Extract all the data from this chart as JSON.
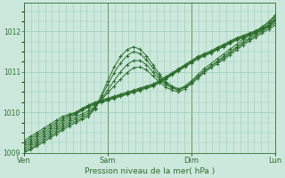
{
  "xlabel": "Pression niveau de la mer( hPa )",
  "background_color": "#cce8dc",
  "plot_bg_color": "#cce8dc",
  "grid_color": "#99ccb8",
  "line_color": "#2d6e2d",
  "marker": "+",
  "markersize": 3,
  "linewidth": 0.7,
  "ylim": [
    1009.0,
    1012.7
  ],
  "yticks": [
    1009,
    1010,
    1011,
    1012
  ],
  "xtick_labels": [
    "Ven",
    "Sam",
    "Dim",
    "Lun"
  ],
  "xtick_positions": [
    0.0,
    0.333,
    0.667,
    1.0
  ],
  "n_points": 40,
  "series": [
    [
      1009.3,
      1009.4,
      1009.5,
      1009.6,
      1009.7,
      1009.8,
      1009.9,
      1009.95,
      1010.0,
      1010.1,
      1010.18,
      1010.25,
      1010.3,
      1010.35,
      1010.4,
      1010.45,
      1010.5,
      1010.55,
      1010.6,
      1010.65,
      1010.7,
      1010.78,
      1010.88,
      1010.98,
      1011.08,
      1011.18,
      1011.28,
      1011.38,
      1011.45,
      1011.52,
      1011.6,
      1011.68,
      1011.76,
      1011.84,
      1011.9,
      1011.96,
      1012.02,
      1012.1,
      1012.2,
      1012.4
    ],
    [
      1009.25,
      1009.35,
      1009.45,
      1009.55,
      1009.65,
      1009.75,
      1009.85,
      1009.93,
      1009.98,
      1010.08,
      1010.16,
      1010.23,
      1010.28,
      1010.33,
      1010.38,
      1010.43,
      1010.48,
      1010.53,
      1010.58,
      1010.63,
      1010.68,
      1010.76,
      1010.86,
      1010.96,
      1011.06,
      1011.16,
      1011.26,
      1011.36,
      1011.43,
      1011.5,
      1011.58,
      1011.66,
      1011.74,
      1011.82,
      1011.88,
      1011.94,
      1012.0,
      1012.08,
      1012.16,
      1012.35
    ],
    [
      1009.2,
      1009.3,
      1009.4,
      1009.5,
      1009.6,
      1009.7,
      1009.8,
      1009.9,
      1009.96,
      1010.06,
      1010.14,
      1010.21,
      1010.26,
      1010.31,
      1010.36,
      1010.41,
      1010.46,
      1010.51,
      1010.56,
      1010.61,
      1010.66,
      1010.74,
      1010.84,
      1010.94,
      1011.04,
      1011.14,
      1011.24,
      1011.34,
      1011.41,
      1011.48,
      1011.56,
      1011.64,
      1011.72,
      1011.8,
      1011.86,
      1011.92,
      1011.98,
      1012.06,
      1012.14,
      1012.3
    ],
    [
      1009.15,
      1009.25,
      1009.35,
      1009.45,
      1009.55,
      1009.65,
      1009.75,
      1009.85,
      1009.94,
      1010.04,
      1010.12,
      1010.19,
      1010.24,
      1010.29,
      1010.34,
      1010.39,
      1010.44,
      1010.49,
      1010.54,
      1010.59,
      1010.64,
      1010.72,
      1010.82,
      1010.92,
      1011.02,
      1011.12,
      1011.22,
      1011.32,
      1011.39,
      1011.46,
      1011.54,
      1011.62,
      1011.7,
      1011.78,
      1011.84,
      1011.9,
      1011.96,
      1012.04,
      1012.12,
      1012.25
    ],
    [
      1009.1,
      1009.2,
      1009.3,
      1009.4,
      1009.5,
      1009.6,
      1009.7,
      1009.8,
      1009.88,
      1009.96,
      1010.04,
      1010.15,
      1010.3,
      1010.48,
      1010.65,
      1010.82,
      1010.98,
      1011.1,
      1011.12,
      1011.05,
      1010.9,
      1010.75,
      1010.62,
      1010.55,
      1010.5,
      1010.58,
      1010.7,
      1010.84,
      1010.98,
      1011.1,
      1011.2,
      1011.3,
      1011.42,
      1011.54,
      1011.66,
      1011.76,
      1011.86,
      1011.96,
      1012.05,
      1012.15
    ],
    [
      1009.05,
      1009.15,
      1009.25,
      1009.35,
      1009.45,
      1009.55,
      1009.65,
      1009.75,
      1009.83,
      1009.91,
      1009.99,
      1010.12,
      1010.32,
      1010.55,
      1010.78,
      1011.0,
      1011.18,
      1011.28,
      1011.28,
      1011.18,
      1011.0,
      1010.82,
      1010.68,
      1010.6,
      1010.55,
      1010.62,
      1010.74,
      1010.88,
      1011.02,
      1011.14,
      1011.24,
      1011.34,
      1011.46,
      1011.58,
      1011.7,
      1011.8,
      1011.9,
      1012.0,
      1012.1,
      1012.2
    ],
    [
      1009.0,
      1009.1,
      1009.2,
      1009.3,
      1009.4,
      1009.5,
      1009.6,
      1009.7,
      1009.78,
      1009.86,
      1009.94,
      1010.1,
      1010.38,
      1010.68,
      1010.98,
      1011.22,
      1011.4,
      1011.5,
      1011.45,
      1011.3,
      1011.1,
      1010.88,
      1010.72,
      1010.62,
      1010.55,
      1010.62,
      1010.74,
      1010.88,
      1011.02,
      1011.14,
      1011.26,
      1011.38,
      1011.5,
      1011.62,
      1011.74,
      1011.84,
      1011.94,
      1012.04,
      1012.14,
      1012.28
    ],
    [
      1009.0,
      1009.08,
      1009.16,
      1009.26,
      1009.36,
      1009.46,
      1009.56,
      1009.66,
      1009.74,
      1009.82,
      1009.9,
      1010.08,
      1010.42,
      1010.78,
      1011.12,
      1011.38,
      1011.55,
      1011.62,
      1011.56,
      1011.4,
      1011.18,
      1010.95,
      1010.76,
      1010.65,
      1010.58,
      1010.65,
      1010.78,
      1010.93,
      1011.08,
      1011.2,
      1011.32,
      1011.44,
      1011.56,
      1011.68,
      1011.8,
      1011.9,
      1012.0,
      1012.12,
      1012.24,
      1012.4
    ]
  ]
}
